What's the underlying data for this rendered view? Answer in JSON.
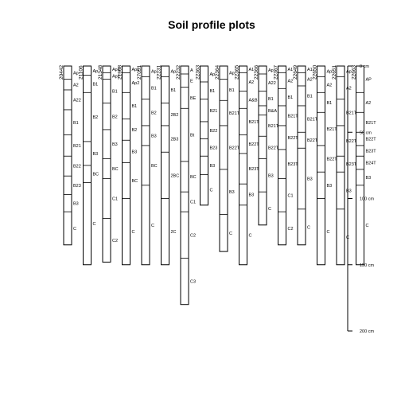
{
  "chart_data": {
    "type": "soil-profile",
    "title": "Soil profile plots",
    "depth_unit": "cm",
    "depth_axis": {
      "ticks": [
        0,
        50,
        100,
        150,
        200
      ],
      "tick_labels": [
        "0 cm",
        "50 cm",
        "100 cm",
        "150 cm",
        "200 cm"
      ],
      "range": [
        0,
        200
      ]
    },
    "profiles": [
      {
        "id": "20442",
        "horizons": [
          {
            "name": "Ap",
            "top": 0,
            "bottom": 10
          },
          {
            "name": "A2",
            "top": 10,
            "bottom": 18
          },
          {
            "name": "A22",
            "top": 18,
            "bottom": 33
          },
          {
            "name": "B1",
            "top": 33,
            "bottom": 52
          },
          {
            "name": "B21",
            "top": 52,
            "bottom": 68
          },
          {
            "name": "B22",
            "top": 68,
            "bottom": 83
          },
          {
            "name": "B23",
            "top": 83,
            "bottom": 97
          },
          {
            "name": "B3",
            "top": 97,
            "bottom": 110
          },
          {
            "name": "C",
            "top": 110,
            "bottom": 135
          }
        ]
      },
      {
        "id": "21106",
        "horizons": [
          {
            "name": "Ap",
            "top": 0,
            "bottom": 7
          },
          {
            "name": "B1",
            "top": 7,
            "bottom": 20
          },
          {
            "name": "B2",
            "top": 20,
            "bottom": 57
          },
          {
            "name": "B3",
            "top": 57,
            "bottom": 75
          },
          {
            "name": "BC",
            "top": 75,
            "bottom": 88
          },
          {
            "name": "C",
            "top": 88,
            "bottom": 150
          }
        ]
      },
      {
        "id": "21348",
        "horizons": [
          {
            "name": "Ap1",
            "top": 0,
            "bottom": 5
          },
          {
            "name": "Ap2",
            "top": 5,
            "bottom": 10
          },
          {
            "name": "B1",
            "top": 10,
            "bottom": 28
          },
          {
            "name": "B2",
            "top": 28,
            "bottom": 48
          },
          {
            "name": "B3",
            "top": 48,
            "bottom": 70
          },
          {
            "name": "BC",
            "top": 70,
            "bottom": 85
          },
          {
            "name": "C1",
            "top": 85,
            "bottom": 115
          },
          {
            "name": "C2",
            "top": 115,
            "bottom": 148
          }
        ]
      },
      {
        "id": "21968",
        "horizons": [
          {
            "name": "Ap1",
            "top": 0,
            "bottom": 5
          },
          {
            "name": "Ap2",
            "top": 5,
            "bottom": 20
          },
          {
            "name": "B1",
            "top": 20,
            "bottom": 40
          },
          {
            "name": "B2",
            "top": 40,
            "bottom": 56
          },
          {
            "name": "B3",
            "top": 56,
            "bottom": 73
          },
          {
            "name": "BC",
            "top": 73,
            "bottom": 100
          },
          {
            "name": "C",
            "top": 100,
            "bottom": 150
          }
        ]
      },
      {
        "id": "27051",
        "horizons": [
          {
            "name": "Ap",
            "top": 0,
            "bottom": 8
          },
          {
            "name": "B1",
            "top": 8,
            "bottom": 25
          },
          {
            "name": "B2",
            "top": 25,
            "bottom": 45
          },
          {
            "name": "B3",
            "top": 45,
            "bottom": 60
          },
          {
            "name": "BC",
            "top": 60,
            "bottom": 90
          },
          {
            "name": "C",
            "top": 90,
            "bottom": 150
          }
        ]
      },
      {
        "id": "22231",
        "horizons": [
          {
            "name": "Ap",
            "top": 0,
            "bottom": 8
          },
          {
            "name": "B1",
            "top": 8,
            "bottom": 28
          },
          {
            "name": "2B2",
            "top": 28,
            "bottom": 45
          },
          {
            "name": "2B3",
            "top": 45,
            "bottom": 65
          },
          {
            "name": "2BC",
            "top": 65,
            "bottom": 100
          },
          {
            "name": "2C",
            "top": 100,
            "bottom": 150
          }
        ]
      },
      {
        "id": "22232",
        "horizons": [
          {
            "name": "A",
            "top": 0,
            "bottom": 6
          },
          {
            "name": "E",
            "top": 6,
            "bottom": 16
          },
          {
            "name": "BE",
            "top": 16,
            "bottom": 32
          },
          {
            "name": "Bt",
            "top": 32,
            "bottom": 72
          },
          {
            "name": "BC",
            "top": 72,
            "bottom": 95
          },
          {
            "name": "C1",
            "top": 95,
            "bottom": 110
          },
          {
            "name": "C2",
            "top": 110,
            "bottom": 145
          },
          {
            "name": "C3",
            "top": 145,
            "bottom": 180
          }
        ]
      },
      {
        "id": "22363",
        "horizons": [
          {
            "name": "Ap",
            "top": 0,
            "bottom": 12
          },
          {
            "name": "B1",
            "top": 12,
            "bottom": 25
          },
          {
            "name": "B21",
            "top": 25,
            "bottom": 42
          },
          {
            "name": "B22",
            "top": 42,
            "bottom": 55
          },
          {
            "name": "B23",
            "top": 55,
            "bottom": 68
          },
          {
            "name": "B3",
            "top": 68,
            "bottom": 82
          },
          {
            "name": "C",
            "top": 82,
            "bottom": 105
          }
        ]
      },
      {
        "id": "22364",
        "horizons": [
          {
            "name": "Ap",
            "top": 0,
            "bottom": 10
          },
          {
            "name": "B1",
            "top": 10,
            "bottom": 26
          },
          {
            "name": "B21T",
            "top": 26,
            "bottom": 45
          },
          {
            "name": "B22T",
            "top": 45,
            "bottom": 78
          },
          {
            "name": "B3",
            "top": 78,
            "bottom": 112
          },
          {
            "name": "C",
            "top": 112,
            "bottom": 140
          }
        ]
      },
      {
        "id": "22365",
        "horizons": [
          {
            "name": "A1",
            "top": 0,
            "bottom": 5
          },
          {
            "name": "A2",
            "top": 5,
            "bottom": 19
          },
          {
            "name": "A&B",
            "top": 19,
            "bottom": 32
          },
          {
            "name": "B21T",
            "top": 32,
            "bottom": 52
          },
          {
            "name": "B22T",
            "top": 52,
            "bottom": 66
          },
          {
            "name": "B23T",
            "top": 66,
            "bottom": 89
          },
          {
            "name": "B3",
            "top": 89,
            "bottom": 105
          },
          {
            "name": "C",
            "top": 105,
            "bottom": 150
          }
        ]
      },
      {
        "id": "22366",
        "horizons": [
          {
            "name": "Ap",
            "top": 0,
            "bottom": 6
          },
          {
            "name": "A22",
            "top": 6,
            "bottom": 19
          },
          {
            "name": "B1",
            "top": 19,
            "bottom": 30
          },
          {
            "name": "B&A",
            "top": 30,
            "bottom": 37
          },
          {
            "name": "B21T",
            "top": 37,
            "bottom": 53
          },
          {
            "name": "B22T",
            "top": 53,
            "bottom": 70
          },
          {
            "name": "B3",
            "top": 70,
            "bottom": 95
          },
          {
            "name": "C",
            "top": 95,
            "bottom": 120
          }
        ]
      },
      {
        "id": "22367",
        "horizons": [
          {
            "name": "A1",
            "top": 0,
            "bottom": 5
          },
          {
            "name": "A2",
            "top": 5,
            "bottom": 17
          },
          {
            "name": "B1",
            "top": 17,
            "bottom": 30
          },
          {
            "name": "B21T",
            "top": 30,
            "bottom": 45
          },
          {
            "name": "B22T",
            "top": 45,
            "bottom": 63
          },
          {
            "name": "B23T",
            "top": 63,
            "bottom": 85
          },
          {
            "name": "C1",
            "top": 85,
            "bottom": 110
          },
          {
            "name": "C2",
            "top": 110,
            "bottom": 135
          }
        ]
      },
      {
        "id": "22649",
        "horizons": [
          {
            "name": "A1",
            "top": 0,
            "bottom": 5
          },
          {
            "name": "A2",
            "top": 5,
            "bottom": 15
          },
          {
            "name": "B1",
            "top": 15,
            "bottom": 30
          },
          {
            "name": "B21T",
            "top": 30,
            "bottom": 50
          },
          {
            "name": "B22T",
            "top": 50,
            "bottom": 62
          },
          {
            "name": "B3",
            "top": 62,
            "bottom": 108
          },
          {
            "name": "C",
            "top": 108,
            "bottom": 135
          }
        ]
      },
      {
        "id": "22650",
        "horizons": [
          {
            "name": "Ap",
            "top": 0,
            "bottom": 8
          },
          {
            "name": "A2",
            "top": 8,
            "bottom": 20
          },
          {
            "name": "B1",
            "top": 20,
            "bottom": 35
          },
          {
            "name": "B21T",
            "top": 35,
            "bottom": 60
          },
          {
            "name": "B22T",
            "top": 60,
            "bottom": 80
          },
          {
            "name": "B3",
            "top": 80,
            "bottom": 100
          },
          {
            "name": "C",
            "top": 100,
            "bottom": 150
          }
        ]
      },
      {
        "id": "22651",
        "horizons": [
          {
            "name": "Ap",
            "top": 0,
            "bottom": 8
          },
          {
            "name": "A2",
            "top": 8,
            "bottom": 25
          },
          {
            "name": "B21T",
            "top": 25,
            "bottom": 45
          },
          {
            "name": "B22T",
            "top": 45,
            "bottom": 68
          },
          {
            "name": "B23T",
            "top": 68,
            "bottom": 80
          },
          {
            "name": "B3",
            "top": 80,
            "bottom": 108
          },
          {
            "name": "C",
            "top": 108,
            "bottom": 150
          }
        ]
      },
      {
        "id": "22663",
        "horizons": [
          {
            "name": "AP",
            "top": 0,
            "bottom": 20
          },
          {
            "name": "A2",
            "top": 20,
            "bottom": 35
          },
          {
            "name": "B21T",
            "top": 35,
            "bottom": 50
          },
          {
            "name": "B22T",
            "top": 50,
            "bottom": 60
          },
          {
            "name": "B23T",
            "top": 60,
            "bottom": 68
          },
          {
            "name": "B24T",
            "top": 68,
            "bottom": 78
          },
          {
            "name": "B3",
            "top": 78,
            "bottom": 90
          },
          {
            "name": "C",
            "top": 90,
            "bottom": 150
          }
        ]
      }
    ]
  }
}
